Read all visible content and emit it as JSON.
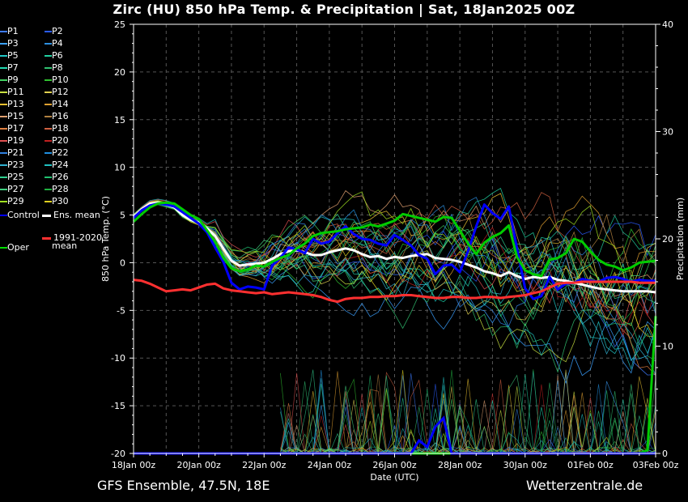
{
  "header": {
    "title": "Zirc  (HU)  850 hPa Temp. & Precipitation | Sat, 18Jan2025 00Z"
  },
  "footer": {
    "model": "GFS Ensemble, 47.5N, 18E",
    "site": "Wetterzentrale.de"
  },
  "legend": {
    "members": [
      {
        "label": "P1",
        "color": "#3d7bff"
      },
      {
        "label": "P2",
        "color": "#2a5cff"
      },
      {
        "label": "P3",
        "color": "#3aa0ff"
      },
      {
        "label": "P4",
        "color": "#2c8fe0"
      },
      {
        "label": "P5",
        "color": "#20c8c8"
      },
      {
        "label": "P6",
        "color": "#20d0a0"
      },
      {
        "label": "P7",
        "color": "#20d8b0"
      },
      {
        "label": "P8",
        "color": "#30c070"
      },
      {
        "label": "P9",
        "color": "#40d060"
      },
      {
        "label": "P10",
        "color": "#30c030"
      },
      {
        "label": "P11",
        "color": "#c8e040"
      },
      {
        "label": "P12",
        "color": "#e0d050"
      },
      {
        "label": "P13",
        "color": "#e8c030"
      },
      {
        "label": "P14",
        "color": "#e0a030"
      },
      {
        "label": "P15",
        "color": "#e0a070"
      },
      {
        "label": "P16",
        "color": "#b08040"
      },
      {
        "label": "P17",
        "color": "#e08040"
      },
      {
        "label": "P18",
        "color": "#d06040"
      },
      {
        "label": "P19",
        "color": "#e05050"
      },
      {
        "label": "P20",
        "color": "#c02020"
      },
      {
        "label": "P21",
        "color": "#3080e0"
      },
      {
        "label": "P22",
        "color": "#2090e0"
      },
      {
        "label": "P23",
        "color": "#30b0d0"
      },
      {
        "label": "P24",
        "color": "#20c0c0"
      },
      {
        "label": "P25",
        "color": "#30d090"
      },
      {
        "label": "P26",
        "color": "#20c070"
      },
      {
        "label": "P27",
        "color": "#40d080"
      },
      {
        "label": "P28",
        "color": "#20b040"
      },
      {
        "label": "P29",
        "color": "#a0e020"
      },
      {
        "label": "P30",
        "color": "#e0d020"
      }
    ],
    "control": {
      "label": "Control",
      "color": "#0000ff"
    },
    "ens_mean": {
      "label": "Ens. mean",
      "color": "#ffffff"
    },
    "climate_line1": "1991-2020",
    "climate_line2": "mean",
    "climate_color": "#ff3030",
    "oper": {
      "label": "Oper",
      "color": "#00dd00"
    }
  },
  "chart_data": {
    "type": "line",
    "title": "Zirc  (HU)  850 hPa Temp. & Precipitation | Sat, 18Jan2025 00Z",
    "xlabel": "Date (UTC)",
    "ylabel": "850 hPa Temp. (°C)",
    "y2label": "Precipitation (mm)",
    "xlim": [
      0,
      384
    ],
    "ylim": [
      -20,
      25
    ],
    "y2lim": [
      0,
      40
    ],
    "yticks": [
      25,
      20,
      15,
      10,
      5,
      0,
      -5,
      -10,
      -15,
      -20
    ],
    "y2ticks": [
      40,
      30,
      20,
      10,
      0
    ],
    "xtick_hours": [
      0,
      48,
      96,
      144,
      192,
      240,
      288,
      336,
      384
    ],
    "xtick_labels": [
      "18Jan 00z",
      "20Jan 00z",
      "22Jan 00z",
      "24Jan 00z",
      "26Jan 00z",
      "28Jan 00z",
      "30Jan 00z",
      "01Feb 00z",
      "03Feb 00z"
    ],
    "grid": true,
    "step_hours": 6,
    "series": [
      {
        "name": "Ens. mean",
        "color": "#ffffff",
        "width": 3,
        "values": [
          4.8,
          5.6,
          6.2,
          6.3,
          6.1,
          5.8,
          5.0,
          4.5,
          4.2,
          3.6,
          2.8,
          1.5,
          0.2,
          -0.3,
          -0.2,
          -0.1,
          0.0,
          0.4,
          0.9,
          1.2,
          1.3,
          1.1,
          0.8,
          0.8,
          1.1,
          1.3,
          1.5,
          1.3,
          0.9,
          0.6,
          0.7,
          0.4,
          0.6,
          0.5,
          0.7,
          0.8,
          0.9,
          0.5,
          0.4,
          0.3,
          0.1,
          -0.2,
          -0.5,
          -0.9,
          -1.1,
          -1.4,
          -1.0,
          -1.4,
          -1.7,
          -1.5,
          -1.6,
          -1.5,
          -1.8,
          -1.9,
          -2.1,
          -2.3,
          -2.5,
          -2.7,
          -2.8,
          -2.9,
          -3.0,
          -3.0,
          -3.0,
          -3.0,
          -3.1
        ]
      },
      {
        "name": "Control",
        "color": "#0000ff",
        "width": 3,
        "values": [
          4.7,
          5.5,
          6.0,
          6.2,
          6.1,
          5.9,
          5.3,
          4.7,
          4.1,
          3.2,
          1.6,
          0.1,
          -2.1,
          -2.8,
          -2.5,
          -2.6,
          -2.8,
          -0.3,
          0.5,
          1.6,
          1.4,
          1.0,
          2.5,
          2.0,
          2.2,
          3.1,
          3.8,
          3.0,
          2.5,
          2.4,
          2.0,
          1.8,
          2.9,
          2.4,
          1.8,
          0.8,
          0.4,
          -1.2,
          -0.3,
          -0.2,
          -1.0,
          1.2,
          3.8,
          6.1,
          5.2,
          4.6,
          5.9,
          1.5,
          -2.7,
          -3.8,
          -3.5,
          -1.5,
          -2.8,
          -2.2,
          -2.1,
          -1.7,
          -1.9,
          -2.0,
          -1.6,
          -1.5,
          -1.7,
          -2.0,
          -1.8,
          -1.9,
          -1.9
        ]
      },
      {
        "name": "Oper",
        "color": "#00cc00",
        "width": 3,
        "values": [
          4.3,
          5.1,
          5.8,
          6.2,
          6.3,
          6.2,
          5.6,
          5.0,
          4.6,
          3.4,
          2.2,
          0.5,
          -0.6,
          -0.9,
          -0.7,
          -0.3,
          -0.4,
          0.1,
          0.5,
          0.8,
          1.5,
          2.0,
          2.8,
          3.1,
          3.2,
          3.3,
          3.5,
          3.6,
          3.7,
          4.0,
          3.8,
          4.1,
          4.4,
          5.1,
          4.9,
          4.7,
          4.5,
          4.3,
          4.8,
          4.7,
          3.4,
          2.0,
          0.9,
          2.1,
          2.7,
          3.1,
          3.9,
          0.6,
          -0.8,
          -1.2,
          -1.4,
          0.3,
          0.5,
          1.0,
          2.5,
          2.2,
          1.2,
          0.3,
          -0.2,
          -0.4,
          -0.8,
          -0.5,
          0.0,
          0.1,
          0.2
        ]
      },
      {
        "name": "1991-2020 mean",
        "color": "#ff3030",
        "width": 3,
        "values": [
          -1.8,
          -1.9,
          -2.2,
          -2.6,
          -3.0,
          -2.9,
          -2.8,
          -2.9,
          -2.6,
          -2.3,
          -2.2,
          -2.7,
          -2.9,
          -3.0,
          -3.1,
          -3.2,
          -3.1,
          -3.3,
          -3.2,
          -3.1,
          -3.2,
          -3.3,
          -3.4,
          -3.6,
          -3.9,
          -4.1,
          -3.8,
          -3.7,
          -3.7,
          -3.6,
          -3.6,
          -3.5,
          -3.5,
          -3.4,
          -3.4,
          -3.5,
          -3.6,
          -3.7,
          -3.7,
          -3.6,
          -3.6,
          -3.7,
          -3.7,
          -3.6,
          -3.6,
          -3.7,
          -3.6,
          -3.5,
          -3.4,
          -3.2,
          -3.0,
          -2.6,
          -2.2,
          -2.1,
          -2.1,
          -2.0,
          -2.0,
          -2.0,
          -2.0,
          -2.0,
          -2.0,
          -2.0,
          -2.1,
          -2.1,
          -2.1
        ]
      }
    ],
    "precipitation": [
      {
        "name": "Oper",
        "color": "#00cc00",
        "values": [
          0,
          0,
          0,
          0,
          0,
          0,
          0,
          0,
          0,
          0,
          0,
          0,
          0,
          0,
          0,
          0,
          0,
          0,
          0,
          0,
          0,
          0,
          0,
          0,
          0,
          0,
          0,
          0,
          0,
          0,
          0,
          0,
          0,
          0,
          0,
          0,
          0,
          0,
          0,
          0,
          0,
          0,
          0,
          0,
          0,
          0,
          0,
          0,
          0,
          0,
          0,
          0,
          0,
          0,
          0,
          0,
          0,
          0,
          0,
          0,
          0,
          0,
          0,
          0.3,
          12.8
        ]
      },
      {
        "name": "Control",
        "color": "#0000ff",
        "values": [
          0,
          0,
          0,
          0,
          0,
          0,
          0,
          0,
          0,
          0,
          0,
          0,
          0,
          0,
          0,
          0,
          0,
          0,
          0,
          0,
          0,
          0,
          0,
          0,
          0,
          0,
          0,
          0,
          0,
          0,
          0,
          0,
          0,
          0,
          0,
          1.2,
          0.6,
          2.5,
          3.3,
          0,
          0,
          0,
          0,
          0,
          0,
          0,
          0,
          0,
          0,
          0,
          0,
          0,
          0,
          0,
          0,
          0,
          0,
          0,
          0,
          0,
          0,
          0,
          0,
          0,
          0
        ]
      }
    ]
  }
}
